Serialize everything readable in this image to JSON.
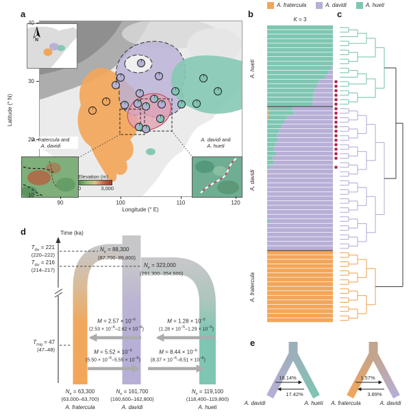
{
  "colors": {
    "fratercula": "#F2A65A",
    "davidi": "#B7AFD6",
    "hueti": "#7EC6B2",
    "admixed_dot": "#B5274D",
    "overlap_fill": "#E2A0B2",
    "overlap_stroke": "#C25069",
    "tree_backbone": "#4A4A4A",
    "tube_gray": "#C7C7C9",
    "arrow_gray": "#ACACAE"
  },
  "legend": {
    "items": [
      {
        "label": "A. fratercula"
      },
      {
        "label": "A. davidi"
      },
      {
        "label": "A. hueti"
      }
    ]
  },
  "panel_a": {
    "label": "a",
    "ylabel": "Latitude (° N)",
    "xlabel": "Longitude (° E)",
    "yticks": [
      "40",
      "30",
      "20",
      "10"
    ],
    "xticks": [
      "90",
      "100",
      "110",
      "120"
    ],
    "north": "N",
    "inset_left_label": "<i>A. fratercula</i> and<br><i>A. davidi</i>",
    "inset_right_label": "<i>A. davidi</i> and<br><i>A. hueti</i>",
    "elev_title": "Elevation (m)",
    "elev_min": "0",
    "elev_max": "3,000"
  },
  "panel_b": {
    "label": "b",
    "title": "<i>K</i> = 3",
    "group_labels": [
      "A. hueti",
      "A. davidi",
      "A. fratercula"
    ]
  },
  "panel_c": {
    "label": "c"
  },
  "panel_d": {
    "label": "d",
    "time_axis": "Time (ka)",
    "tdiv1": "<i>T</i><sub>div</sub> = 221",
    "tdiv1_range": "(220–222)",
    "tdiv2": "<i>T</i><sub>div</sub> = 216",
    "tdiv2_range": "(214–217)",
    "tmig": "<i>T</i><sub>mig</sub> = 47",
    "tmig_range": "(47–48)",
    "ne_root": "<i>N</i><sub>e</sub> = 88,300",
    "ne_root_range": "(87,700–88,800)",
    "ne_anc": "<i>N</i><sub>e</sub> = 323,000",
    "ne_anc_range": "(291,300–354,600)",
    "m_d_to_f": "<i>M</i> = 2.57 × 10<sup>−6</sup>",
    "m_d_to_f_range": "(2.53 × 10<sup>−6</sup>–2.62 × 10<sup>−6</sup>)",
    "m_h_to_d": "<i>M</i> = 1.28 × 10<sup>−5</sup>",
    "m_h_to_d_range": "(1.28 × 10<sup>−5</sup>–1.29 × 10<sup>−5</sup>)",
    "m_f_to_d": "<i>M</i> = 5.52 × 10<sup>−6</sup>",
    "m_f_to_d_range": "(5.50 × 10<sup>−6</sup>–5.55 × 10<sup>−6</sup>)",
    "m_d_to_h": "<i>M</i> = 8.44 × 10<sup>−6</sup>",
    "m_d_to_h_range": "(8.37 × 10<sup>−6</sup>–8.51 × 10<sup>−6</sup>)",
    "pops": [
      {
        "ne": "<i>N</i><sub>e</sub> = 63,300",
        "range": "(63,000–63,700)",
        "name": "A. fratercula"
      },
      {
        "ne": "<i>N</i><sub>e</sub> = 161,700",
        "range": "(160,600–162,800)",
        "name": "A. davidi"
      },
      {
        "ne": "<i>N</i><sub>e</sub> = 119,100",
        "range": "(118,400–119,800)",
        "name": "A. hueti"
      }
    ]
  },
  "panel_e": {
    "label": "e",
    "left": {
      "from": "A. davidi",
      "to": "A. hueti",
      "forward": "16.14%",
      "backward": "17.42%"
    },
    "right": {
      "from": "A. fratercula",
      "to": "A. davidi",
      "forward": "1.57%",
      "backward": "3.89%"
    }
  },
  "chart_data": [
    {
      "id": "panel_b_structure",
      "type": "bar",
      "subtype": "stacked-admixture",
      "title": "K = 3",
      "components": [
        "A. fratercula",
        "A. hueti",
        "A. davidi"
      ],
      "groups": [
        {
          "name": "A. hueti",
          "rows": [
            [
              0,
              1,
              0
            ],
            [
              0,
              1,
              0
            ],
            [
              0,
              1,
              0
            ],
            [
              0,
              1,
              0
            ],
            [
              0,
              1,
              0
            ],
            [
              0,
              1,
              0
            ],
            [
              0,
              1,
              0
            ],
            [
              0,
              1,
              0
            ],
            [
              0,
              1,
              0
            ],
            [
              0,
              0.97,
              0.03
            ],
            [
              0,
              0.93,
              0.07
            ],
            [
              0,
              0.88,
              0.12
            ],
            [
              0,
              0.78,
              0.22
            ],
            [
              0,
              0.75,
              0.25
            ],
            [
              0,
              0.72,
              0.28
            ],
            [
              0,
              0.7,
              0.3
            ],
            [
              0,
              0.7,
              0.3
            ],
            [
              0,
              0.68,
              0.32
            ]
          ]
        },
        {
          "name": "A. davidi",
          "rows": [
            [
              0.02,
              0.36,
              0.62
            ],
            [
              0.02,
              0.38,
              0.6
            ],
            [
              0.02,
              0.28,
              0.7
            ],
            [
              0,
              0.26,
              0.74
            ],
            [
              0,
              0.22,
              0.78
            ],
            [
              0,
              0.18,
              0.82
            ],
            [
              0,
              0.15,
              0.85
            ],
            [
              0,
              0.16,
              0.84
            ],
            [
              0,
              0.12,
              0.88
            ],
            [
              0,
              0.1,
              0.9
            ],
            [
              0,
              0.13,
              0.87
            ],
            [
              0,
              0.08,
              0.92
            ],
            [
              0,
              0.1,
              0.9
            ],
            [
              0,
              0.04,
              0.96
            ],
            [
              0,
              0,
              1
            ],
            [
              0,
              0,
              1
            ],
            [
              0,
              0,
              1
            ],
            [
              0,
              0,
              1
            ],
            [
              0,
              0,
              1
            ],
            [
              0,
              0,
              1
            ],
            [
              0,
              0,
              1
            ],
            [
              0,
              0,
              1
            ],
            [
              0,
              0,
              1
            ],
            [
              0,
              0,
              1
            ],
            [
              0,
              0,
              1
            ],
            [
              0,
              0.03,
              0.97
            ],
            [
              0,
              0,
              1
            ],
            [
              0,
              0,
              1
            ],
            [
              0,
              0,
              1
            ],
            [
              0,
              0,
              1
            ],
            [
              0,
              0,
              1
            ],
            [
              0,
              0,
              1
            ]
          ]
        },
        {
          "name": "A. fratercula",
          "rows": [
            [
              1,
              0,
              0
            ],
            [
              1,
              0,
              0
            ],
            [
              1,
              0,
              0
            ],
            [
              1,
              0,
              0
            ],
            [
              1,
              0,
              0
            ],
            [
              1,
              0,
              0
            ],
            [
              1,
              0,
              0
            ],
            [
              1,
              0,
              0
            ],
            [
              1,
              0,
              0
            ],
            [
              1,
              0,
              0
            ],
            [
              1,
              0,
              0
            ],
            [
              1,
              0,
              0
            ],
            [
              1,
              0,
              0
            ],
            [
              1,
              0,
              0
            ],
            [
              1,
              0,
              0
            ],
            [
              1,
              0,
              0
            ]
          ]
        }
      ]
    },
    {
      "id": "panel_c_tree",
      "type": "tree",
      "clades": [
        {
          "name": "A. hueti",
          "tips": 18
        },
        {
          "name": "A. davidi",
          "tips": 32
        },
        {
          "name": "A. fratercula",
          "tips": 16
        }
      ],
      "admixed_rows": [
        12,
        13,
        14,
        15,
        16,
        17,
        18,
        19,
        20,
        21,
        22,
        23,
        24,
        25,
        26,
        27,
        28,
        29,
        31
      ]
    },
    {
      "id": "panel_a_map_pies",
      "type": "pie",
      "note": "parts order = [A. fratercula, A. hueti, A. davidi]; x,y in % of map area",
      "pies": [
        {
          "x": 26,
          "y": 51,
          "p": [
            1,
            0,
            0
          ]
        },
        {
          "x": 33,
          "y": 46,
          "p": [
            1,
            0,
            0
          ]
        },
        {
          "x": 50,
          "y": 24,
          "p": [
            0,
            0.03,
            0.97
          ]
        },
        {
          "x": 40,
          "y": 32,
          "p": [
            0,
            0.04,
            0.96
          ]
        },
        {
          "x": 37.5,
          "y": 36.5,
          "p": [
            0,
            0.03,
            0.97
          ]
        },
        {
          "x": 59,
          "y": 31.5,
          "p": [
            0,
            0.05,
            0.95
          ]
        },
        {
          "x": 49.5,
          "y": 41,
          "p": [
            0,
            0.07,
            0.93
          ]
        },
        {
          "x": 42,
          "y": 48,
          "p": [
            0,
            0.12,
            0.88
          ]
        },
        {
          "x": 48.5,
          "y": 47,
          "p": [
            0,
            0.22,
            0.78
          ]
        },
        {
          "x": 52.5,
          "y": 48.5,
          "p": [
            0,
            0.28,
            0.72
          ]
        },
        {
          "x": 56.5,
          "y": 44.5,
          "p": [
            0,
            0.45,
            0.55
          ]
        },
        {
          "x": 60.5,
          "y": 47.5,
          "p": [
            0,
            0.12,
            0.88
          ]
        },
        {
          "x": 59.5,
          "y": 55.5,
          "p": [
            0,
            0.62,
            0.38
          ]
        },
        {
          "x": 49,
          "y": 60.5,
          "p": [
            0,
            0.55,
            0.45
          ]
        },
        {
          "x": 52.5,
          "y": 61.5,
          "p": [
            0,
            0.25,
            0.75
          ]
        },
        {
          "x": 67,
          "y": 40,
          "p": [
            0,
            0.9,
            0.1
          ]
        },
        {
          "x": 70,
          "y": 47.5,
          "p": [
            0,
            0.93,
            0.07
          ]
        },
        {
          "x": 77.5,
          "y": 47,
          "p": [
            0,
            0.92,
            0.08
          ]
        },
        {
          "x": 81,
          "y": 32.5,
          "p": [
            0,
            0.95,
            0.05
          ]
        },
        {
          "x": 88,
          "y": 40,
          "p": [
            0,
            0.95,
            0.05
          ]
        }
      ]
    },
    {
      "id": "panel_d_demography",
      "type": "diagram",
      "t_div_ka": [
        221,
        216
      ],
      "t_div_ranges": [
        [
          220,
          222
        ],
        [
          214,
          217
        ]
      ],
      "t_mig_ka": 47,
      "t_mig_range": [
        47,
        48
      ],
      "ne": {
        "ancestral_root": 88300,
        "ancestral_root_range": [
          87700,
          88800
        ],
        "ancestral_davidi_hueti": 323000,
        "ancestral_davidi_hueti_range": [
          291300,
          354600
        ],
        "fratercula": 63300,
        "fratercula_range": [
          63000,
          63700
        ],
        "davidi": 161700,
        "davidi_range": [
          160600,
          162800
        ],
        "hueti": 119100,
        "hueti_range": [
          118400,
          119800
        ]
      },
      "migration": {
        "davidi_to_fratercula": 2.57e-06,
        "hueti_to_davidi": 1.28e-05,
        "fratercula_to_davidi": 5.52e-06,
        "davidi_to_hueti": 8.44e-06
      }
    },
    {
      "id": "panel_e_geneflow",
      "type": "diagram",
      "pairs": [
        {
          "left": "A. davidi",
          "right": "A. hueti",
          "left_to_right_pct": 16.14,
          "right_to_left_pct": 17.42
        },
        {
          "left": "A. fratercula",
          "right": "A. davidi",
          "left_to_right_pct": 1.57,
          "right_to_left_pct": 3.89
        }
      ]
    }
  ]
}
